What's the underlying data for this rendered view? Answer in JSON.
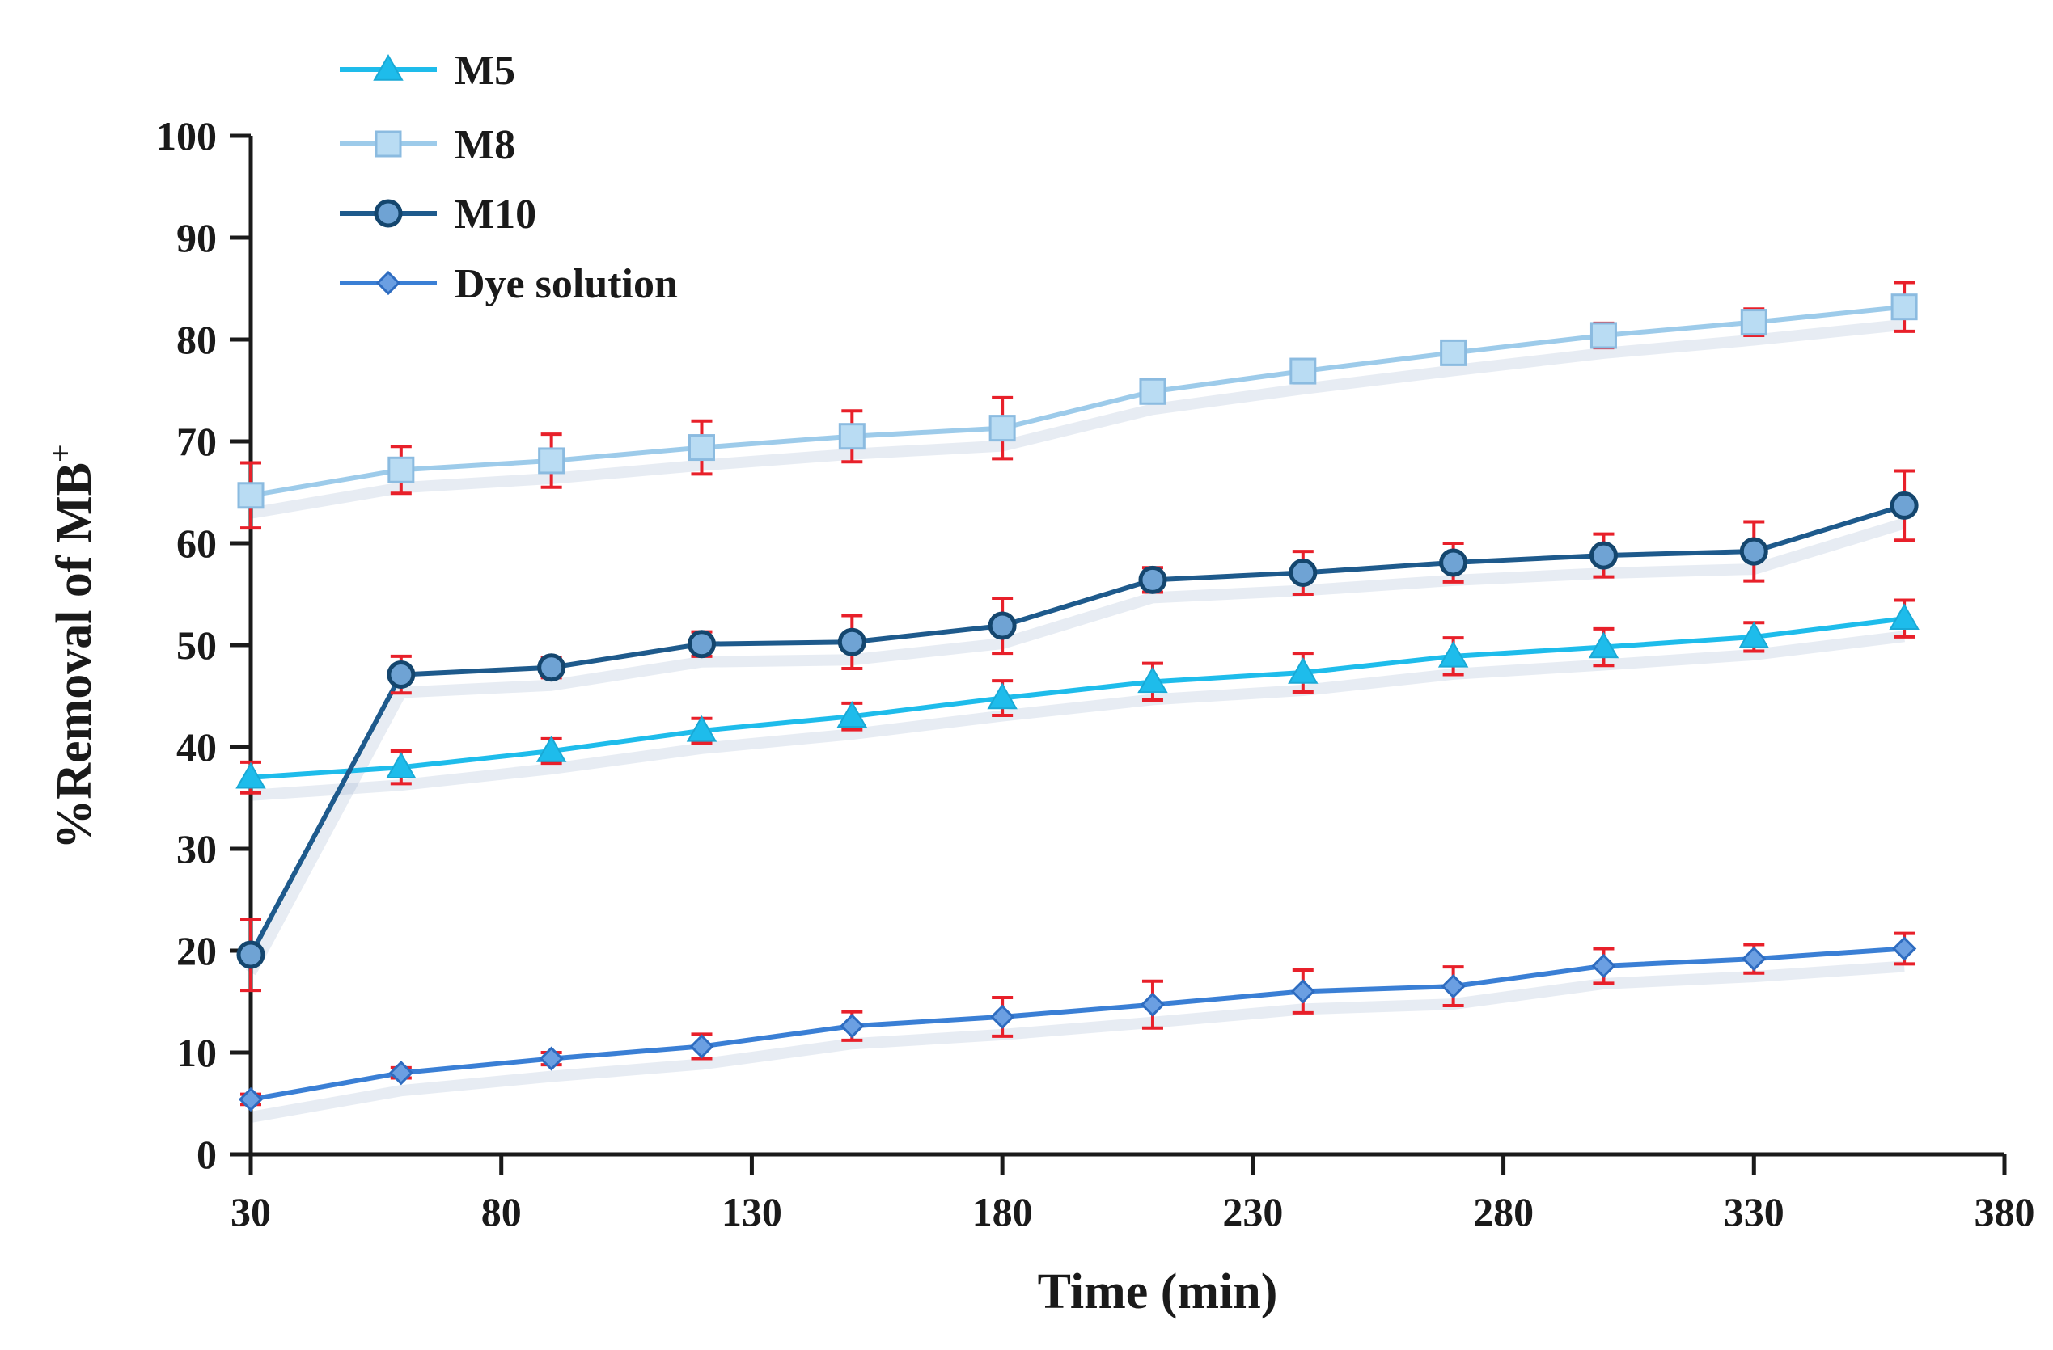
{
  "chart_data": {
    "type": "line",
    "title": "",
    "xlabel": "Time (min)",
    "ylabel": "%Removal of MB",
    "ylabel_superscript": "+",
    "xlim": [
      30,
      380
    ],
    "ylim": [
      0,
      100
    ],
    "x_ticks": [
      30,
      80,
      130,
      180,
      230,
      280,
      330,
      380
    ],
    "y_ticks": [
      0,
      10,
      20,
      30,
      40,
      50,
      60,
      70,
      80,
      90,
      100
    ],
    "grid": false,
    "legend_position": "top-left",
    "x": [
      30,
      60,
      90,
      120,
      150,
      180,
      210,
      240,
      270,
      300,
      330,
      360
    ],
    "series": [
      {
        "name": "M5",
        "marker": "triangle",
        "color": "#1EBCEB",
        "values": [
          37.0,
          38.0,
          39.6,
          41.6,
          43.0,
          44.8,
          46.4,
          47.3,
          48.9,
          49.8,
          50.8,
          52.6
        ],
        "errors": [
          1.5,
          1.6,
          1.2,
          1.2,
          1.3,
          1.7,
          1.8,
          1.9,
          1.8,
          1.8,
          1.4,
          1.8
        ]
      },
      {
        "name": "M8",
        "marker": "square",
        "color": "#9DCBEA",
        "values": [
          64.7,
          67.2,
          68.1,
          69.4,
          70.5,
          71.3,
          74.9,
          76.9,
          78.7,
          80.4,
          81.7,
          83.2
        ],
        "errors": [
          3.2,
          2.3,
          2.6,
          2.6,
          2.5,
          3.0,
          1.0,
          0.6,
          0.6,
          1.2,
          1.3,
          2.4
        ]
      },
      {
        "name": "M10",
        "marker": "circle",
        "color": "#1E5A8C",
        "values": [
          19.6,
          47.1,
          47.8,
          50.1,
          50.3,
          51.9,
          56.4,
          57.1,
          58.1,
          58.8,
          59.2,
          63.7
        ],
        "errors": [
          3.5,
          1.8,
          1.0,
          1.2,
          2.6,
          2.7,
          1.2,
          2.1,
          1.9,
          2.1,
          2.9,
          3.4
        ]
      },
      {
        "name": "Dye solution",
        "marker": "diamond",
        "color": "#3A7FD5",
        "values": [
          5.4,
          8.0,
          9.4,
          10.6,
          12.6,
          13.5,
          14.7,
          16.0,
          16.5,
          18.5,
          19.2,
          20.2
        ],
        "errors": [
          0.5,
          0.5,
          0.6,
          1.2,
          1.4,
          1.9,
          2.3,
          2.1,
          1.9,
          1.7,
          1.4,
          1.5
        ]
      }
    ],
    "error_bar_color": "#E8202A"
  }
}
